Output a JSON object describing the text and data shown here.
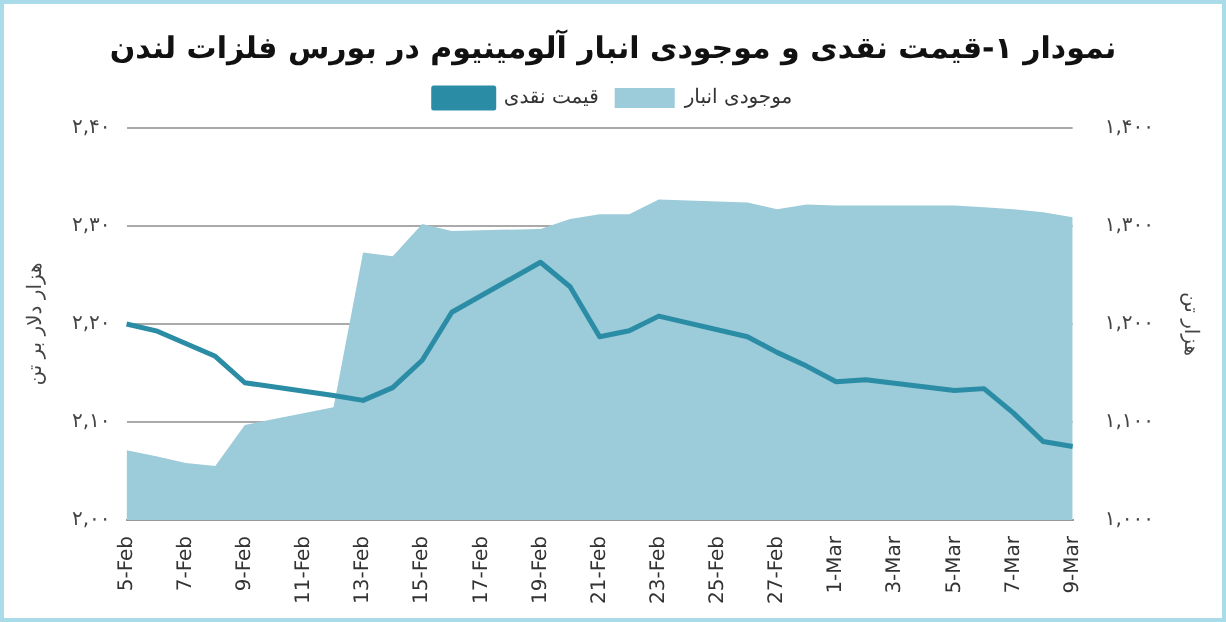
{
  "chart_data": {
    "type": "line",
    "title": "نمودار ۱-قیمت نقدی و موجودی انبار آلومینیوم در بورس فلزات لندن",
    "ylabel": "هزار دلار بر تن",
    "y2label": "هزار تن",
    "categories": [
      "5-Feb",
      null,
      "7-Feb",
      null,
      "9-Feb",
      null,
      "11-Feb",
      null,
      "13-Feb",
      null,
      "15-Feb",
      null,
      "17-Feb",
      null,
      "19-Feb",
      null,
      "21-Feb",
      null,
      "23-Feb",
      null,
      "25-Feb",
      null,
      "27-Feb",
      null,
      "1-Mar",
      null,
      "3-Mar",
      null,
      "5-Mar",
      null,
      "7-Mar",
      null,
      "9-Mar"
    ],
    "series": [
      {
        "name": "موجودی انبار",
        "type": "area",
        "axis": "y2",
        "color": "#9ccbd9",
        "values": [
          1.071,
          1.065,
          1.058,
          1.055,
          1.097,
          null,
          null,
          1.115,
          1.273,
          1.269,
          1.302,
          1.295,
          null,
          null,
          1.297,
          1.307,
          1.312,
          1.312,
          1.327,
          null,
          null,
          1.324,
          1.317,
          1.322,
          1.321,
          1.321,
          null,
          null,
          1.321,
          1.319,
          1.317,
          1.314,
          1.309
        ]
      },
      {
        "name": "قیمت نقدی",
        "type": "line",
        "color": "#2b8ca6",
        "values": [
          2.2,
          2.193,
          2.18,
          2.167,
          2.14,
          null,
          null,
          2.127,
          2.122,
          2.135,
          2.163,
          2.212,
          null,
          null,
          2.263,
          2.238,
          2.187,
          2.193,
          2.208,
          null,
          null,
          2.187,
          2.171,
          2.157,
          2.141,
          2.143,
          null,
          null,
          2.132,
          2.134,
          2.109,
          2.08,
          2.075
        ]
      }
    ],
    "ylim": [
      2.0,
      2.4
    ],
    "yticks": [
      {
        "value": 2.0,
        "label": "۲,۰۰"
      },
      {
        "value": 2.1,
        "label": "۲,۱۰"
      },
      {
        "value": 2.2,
        "label": "۲,۲۰"
      },
      {
        "value": 2.3,
        "label": "۲,۳۰"
      },
      {
        "value": 2.4,
        "label": "۲,۴۰"
      }
    ],
    "y2lim": [
      1.0,
      1.4
    ],
    "y2ticks": [
      {
        "value": 1.0,
        "label": "۱,۰۰۰"
      },
      {
        "value": 1.1,
        "label": "۱,۱۰۰"
      },
      {
        "value": 1.2,
        "label": "۱,۲۰۰"
      },
      {
        "value": 1.3,
        "label": "۱,۳۰۰"
      },
      {
        "value": 1.4,
        "label": "۱,۴۰۰"
      }
    ],
    "grid": "y",
    "legend": "top",
    "marker": "none",
    "line_style": "solid"
  }
}
